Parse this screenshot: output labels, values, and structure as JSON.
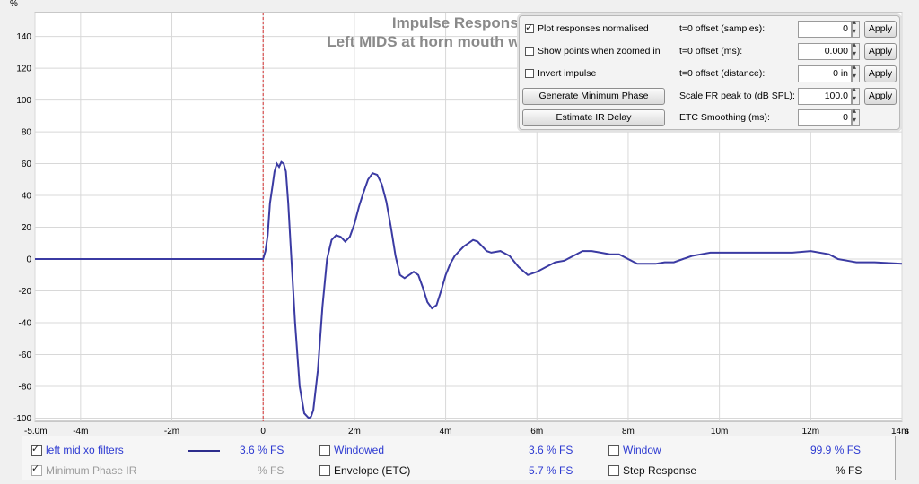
{
  "chart_data": {
    "type": "line",
    "title": "Impulse Response",
    "subtitle": "Left MIDS at horn mouth w XO filters",
    "ylabel": "%",
    "xunit": "s",
    "xlim": [
      -5.0,
      14.0
    ],
    "ylim": [
      -102,
      155
    ],
    "x_ticks": [
      -5,
      -4,
      -2,
      0,
      2,
      4,
      6,
      8,
      10,
      12,
      14
    ],
    "x_tick_labels": [
      "-5.0m",
      "-4m",
      "-2m",
      "0",
      "2m",
      "4m",
      "6m",
      "8m",
      "10m",
      "12m",
      "14m"
    ],
    "y_ticks": [
      -100,
      -80,
      -60,
      -40,
      -20,
      0,
      20,
      40,
      60,
      80,
      100,
      120,
      140
    ],
    "y_tick_labels": [
      "-100",
      "-80",
      "-60",
      "-40",
      "-20",
      "0",
      "20",
      "40",
      "60",
      "80",
      "100",
      "120",
      "140"
    ],
    "grid": true,
    "marker_x": 0,
    "series": [
      {
        "name": "left mid xo filters",
        "color": "#3b3ba3",
        "x": [
          -5.0,
          -4.0,
          -3.0,
          -2.0,
          -1.0,
          0.0,
          0.05,
          0.1,
          0.15,
          0.2,
          0.25,
          0.3,
          0.35,
          0.4,
          0.45,
          0.5,
          0.55,
          0.6,
          0.7,
          0.8,
          0.9,
          1.0,
          1.05,
          1.1,
          1.2,
          1.3,
          1.4,
          1.5,
          1.6,
          1.7,
          1.8,
          1.9,
          2.0,
          2.1,
          2.2,
          2.3,
          2.4,
          2.5,
          2.6,
          2.7,
          2.8,
          2.9,
          3.0,
          3.1,
          3.2,
          3.3,
          3.4,
          3.5,
          3.6,
          3.7,
          3.8,
          3.9,
          4.0,
          4.1,
          4.2,
          4.3,
          4.4,
          4.5,
          4.6,
          4.7,
          4.8,
          4.9,
          5.0,
          5.2,
          5.4,
          5.6,
          5.8,
          6.0,
          6.2,
          6.4,
          6.6,
          6.8,
          7.0,
          7.2,
          7.4,
          7.6,
          7.8,
          8.0,
          8.2,
          8.4,
          8.6,
          8.8,
          9.0,
          9.2,
          9.4,
          9.6,
          9.8,
          10.0,
          10.4,
          10.8,
          11.2,
          11.6,
          12.0,
          12.4,
          12.6,
          12.8,
          13.0,
          13.4,
          14.0
        ],
        "values": [
          0,
          0,
          0,
          0,
          0,
          0,
          5,
          15,
          35,
          45,
          55,
          60,
          58,
          61,
          60,
          55,
          35,
          10,
          -40,
          -80,
          -97,
          -100,
          -99,
          -95,
          -70,
          -30,
          0,
          12,
          15,
          14,
          11,
          14,
          22,
          33,
          42,
          50,
          54,
          53,
          47,
          36,
          20,
          2,
          -10,
          -12,
          -10,
          -8,
          -10,
          -18,
          -27,
          -31,
          -29,
          -20,
          -10,
          -3,
          2,
          5,
          8,
          10,
          12,
          11,
          8,
          5,
          4,
          5,
          2,
          -5,
          -10,
          -8,
          -5,
          -2,
          -1,
          2,
          5,
          5,
          4,
          3,
          3,
          0,
          -3,
          -3,
          -3,
          -2,
          -2,
          0,
          2,
          3,
          4,
          4,
          4,
          4,
          4,
          4,
          5,
          3,
          0,
          -1,
          -2,
          -2,
          -3
        ]
      }
    ]
  },
  "controls": {
    "plot_normalised": {
      "label": "Plot responses normalised",
      "checked": true
    },
    "show_points": {
      "label": "Show points when zoomed in",
      "checked": false
    },
    "invert_impulse": {
      "label": "Invert impulse",
      "checked": false
    },
    "generate_min_phase": "Generate Minimum Phase",
    "estimate_ir_delay": "Estimate IR Delay",
    "t0_samples": {
      "label": "t=0 offset (samples):",
      "value": "0",
      "apply": "Apply"
    },
    "t0_ms": {
      "label": "t=0 offset (ms):",
      "value": "0.000",
      "apply": "Apply"
    },
    "t0_distance": {
      "label": "t=0 offset (distance):",
      "value": "0 in",
      "apply": "Apply"
    },
    "scale_fr_peak": {
      "label": "Scale FR peak to (dB SPL):",
      "value": "100.0",
      "apply": "Apply"
    },
    "etc_smoothing": {
      "label": "ETC Smoothing (ms):",
      "value": "0"
    }
  },
  "legend": {
    "item1": {
      "label": "left mid xo filters",
      "value": "3.6 % FS",
      "checked": true,
      "line_color": "#2d2d8c"
    },
    "item2": {
      "label": "Minimum Phase IR",
      "value": "% FS",
      "checked": true
    },
    "item3": {
      "label": "Windowed",
      "value": "3.6 % FS",
      "checked": false
    },
    "item4": {
      "label": "Envelope (ETC)",
      "value": "5.7 % FS",
      "checked": false
    },
    "item5": {
      "label": "Window",
      "value": "99.9 % FS",
      "checked": false
    },
    "item6": {
      "label": "Step Response",
      "value": "% FS",
      "checked": false
    }
  }
}
